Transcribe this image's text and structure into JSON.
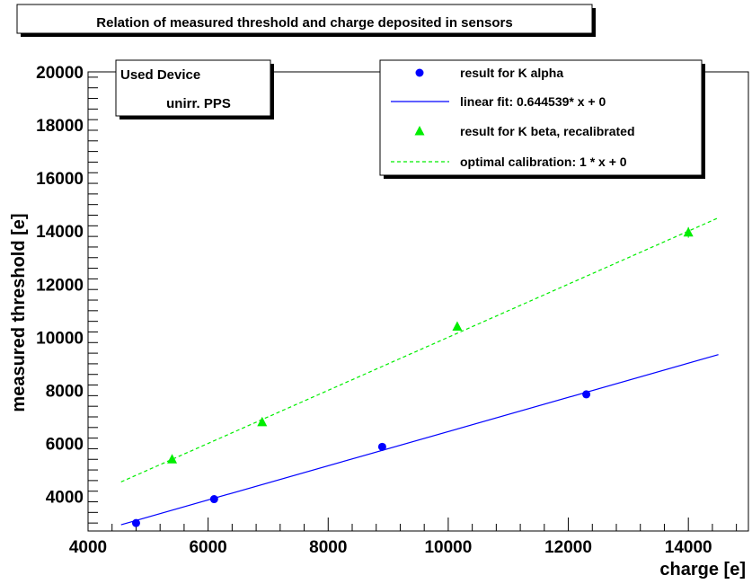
{
  "chart_data": {
    "type": "scatter",
    "title": "Relation of measured threshold and charge deposited in sensors",
    "xlabel": "charge [e]",
    "ylabel": "measured threshold [e]",
    "xlim": [
      4000,
      15000
    ],
    "ylim": [
      2700,
      20000
    ],
    "xticks": [
      4000,
      6000,
      8000,
      10000,
      12000,
      14000
    ],
    "yticks": [
      4000,
      6000,
      8000,
      10000,
      12000,
      14000,
      16000,
      18000,
      20000
    ],
    "grid": false,
    "legend_position": "top-right",
    "colors": {
      "kalpha": "#0000ff",
      "fit": "#0000ff",
      "kbeta": "#00ee00",
      "optimal": "#00ee00"
    },
    "series": [
      {
        "name": "result for K alpha",
        "kind": "points",
        "marker": "circle",
        "x": [
          4800,
          6100,
          8900,
          12300
        ],
        "y": [
          3000,
          3900,
          5870,
          7850
        ]
      },
      {
        "name": "linear fit: 0.644539* x + 0",
        "kind": "line",
        "style": "solid",
        "x": [
          4550,
          14500
        ],
        "y": [
          2935,
          9346
        ]
      },
      {
        "name": "result for K beta, recalibrated",
        "kind": "points",
        "marker": "triangle",
        "x": [
          5400,
          6900,
          10150,
          14000
        ],
        "y": [
          5400,
          6800,
          10400,
          13950
        ],
        "yerr": [
          80,
          100,
          150,
          200
        ]
      },
      {
        "name": "optimal calibration: 1 * x + 0",
        "kind": "line",
        "style": "dashed",
        "x": [
          4550,
          14500
        ],
        "y": [
          4550,
          14500
        ]
      }
    ]
  },
  "device_box": {
    "heading": "Used Device",
    "value": "unirr. PPS"
  }
}
